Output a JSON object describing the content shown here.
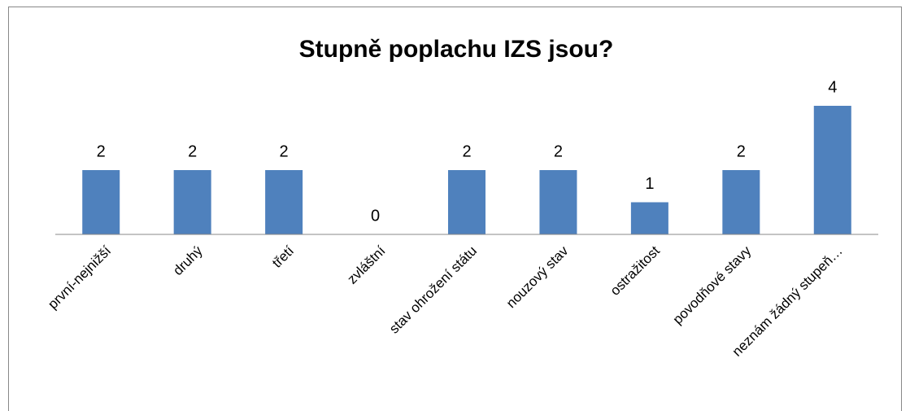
{
  "chart_data": {
    "type": "bar",
    "title": "Stupně poplachu IZS jsou?",
    "categories": [
      "první-nejnižší",
      "druhý",
      "třetí",
      "zvláštní",
      "stav ohrožení státu",
      "nouzový stav",
      "ostražitost",
      "povodňové stavy",
      "neznám žádný stupeň…"
    ],
    "values": [
      2,
      2,
      2,
      0,
      2,
      2,
      1,
      2,
      4
    ],
    "color": "#4f81bd",
    "ylim": [
      0,
      4
    ],
    "grid": false
  }
}
